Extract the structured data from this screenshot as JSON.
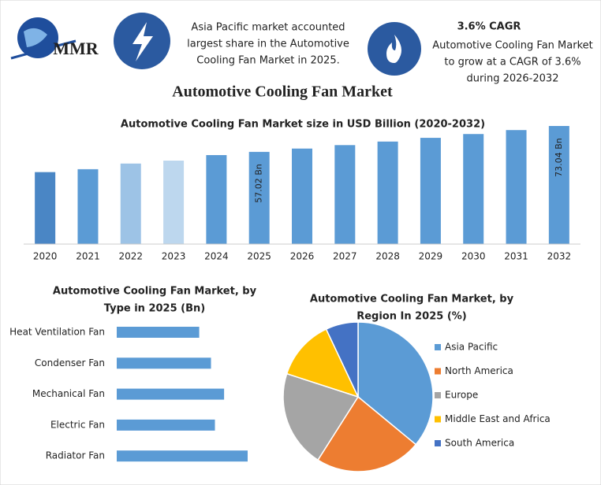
{
  "header": {
    "logo": "MMR",
    "note_left": [
      "Asia Pacific market accounted",
      "largest share in the Automotive",
      "Cooling Fan Market in 2025."
    ],
    "cagr_title": "3.6% CAGR",
    "note_right": [
      "Automotive Cooling Fan Market",
      "to grow at a CAGR of 3.6%",
      "during 2026-2032"
    ]
  },
  "title": "Automotive Cooling Fan Market",
  "chart_data": [
    {
      "type": "bar",
      "title": "Automotive Cooling Fan Market size in USD Billion (2020-2032)",
      "categories": [
        "2020",
        "2021",
        "2022",
        "2023",
        "2024",
        "2025",
        "2026",
        "2027",
        "2028",
        "2029",
        "2030",
        "2031",
        "2032"
      ],
      "values": [
        44.5,
        46.3,
        49.8,
        51.6,
        55.04,
        57.02,
        59.07,
        61.2,
        63.4,
        65.7,
        68.06,
        70.5,
        73.04
      ],
      "value_labels": [
        null,
        null,
        null,
        null,
        null,
        "57.02 Bn",
        null,
        null,
        null,
        null,
        null,
        null,
        "73.04 Bn"
      ],
      "colors": [
        "#4a86c5",
        "#5b9bd5",
        "#9dc3e6",
        "#bdd7ee",
        "#5b9bd5",
        "#5b9bd5",
        "#5b9bd5",
        "#5b9bd5",
        "#5b9bd5",
        "#5b9bd5",
        "#5b9bd5",
        "#5b9bd5",
        "#5b9bd5"
      ]
    },
    {
      "type": "hbar",
      "title": [
        "Automotive Cooling Fan Market, by",
        "Type in 2025 (Bn)"
      ],
      "categories": [
        "Heat Ventilation Fan",
        "Condenser Fan",
        "Mechanical Fan",
        "Electric Fan",
        "Radiator Fan"
      ],
      "values": [
        0.63,
        0.72,
        0.82,
        0.75,
        1.0
      ],
      "color": "#5b9bd5"
    },
    {
      "type": "pie",
      "title": [
        "Automotive Cooling Fan Market, by",
        "Region In 2025 (%)"
      ],
      "categories": [
        "Asia Pacific",
        "North America",
        "Europe",
        "Middle East and Africa",
        "South America"
      ],
      "values": [
        36,
        23,
        21,
        13,
        7
      ],
      "colors": [
        "#5b9bd5",
        "#ed7d31",
        "#a5a5a5",
        "#ffc000",
        "#4472c4"
      ]
    }
  ]
}
